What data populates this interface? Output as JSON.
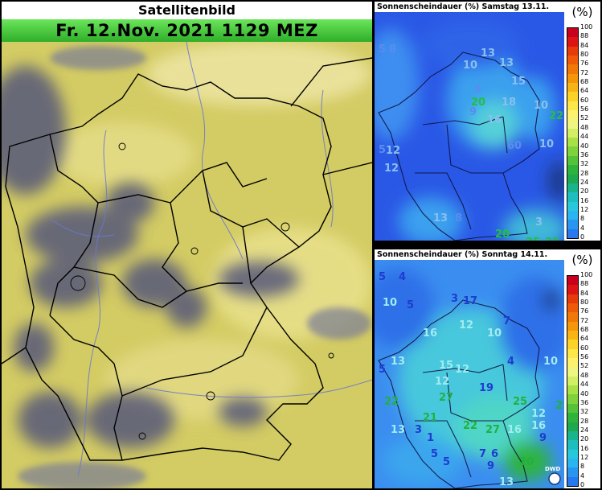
{
  "satellite": {
    "title": "Satellitenbild",
    "subtitle": "Fr. 12.Nov. 2021 1129 MEZ"
  },
  "forecast_saturday": {
    "title": "Sonnenscheindauer (%) Samstag 13.11.",
    "legend_unit": "(%)",
    "numbers": [
      "5",
      "8",
      "13",
      "13",
      "10",
      "15",
      "20",
      "18",
      "16",
      "10",
      "22",
      "12",
      "12",
      "10",
      "13",
      "5",
      "8",
      "60",
      "20",
      "3",
      "25",
      "32",
      "9",
      "6"
    ]
  },
  "forecast_sunday": {
    "title": "Sonnenscheindauer (%) Sonntag 14.11.",
    "legend_unit": "(%)",
    "numbers": [
      "5",
      "4",
      "10",
      "5",
      "3",
      "17",
      "16",
      "12",
      "7",
      "10",
      "10",
      "5",
      "13",
      "15",
      "12",
      "12",
      "19",
      "27",
      "22",
      "25",
      "22",
      "27",
      "21",
      "16",
      "9",
      "12",
      "13",
      "5",
      "5",
      "7",
      "6",
      "20",
      "13",
      "1",
      "3",
      "9",
      "16",
      "4",
      "25"
    ]
  },
  "legend": {
    "labels": [
      "100",
      "88",
      "84",
      "80",
      "76",
      "72",
      "68",
      "64",
      "60",
      "56",
      "52",
      "48",
      "44",
      "40",
      "36",
      "32",
      "28",
      "24",
      "20",
      "16",
      "12",
      "8",
      "4",
      "0"
    ],
    "colors": [
      "#c8001e",
      "#dc1414",
      "#e63c0a",
      "#ee5a08",
      "#f07808",
      "#f5960a",
      "#f8b414",
      "#fad228",
      "#fce64a",
      "#fcf26e",
      "#eef582",
      "#d2ee64",
      "#a8e046",
      "#7fd23c",
      "#55c23a",
      "#2eb43c",
      "#1ea850",
      "#19b48c",
      "#1ebebe",
      "#28c8dc",
      "#2ab4f0",
      "#2896f0",
      "#2878f0"
    ]
  },
  "watermark": "DWD"
}
